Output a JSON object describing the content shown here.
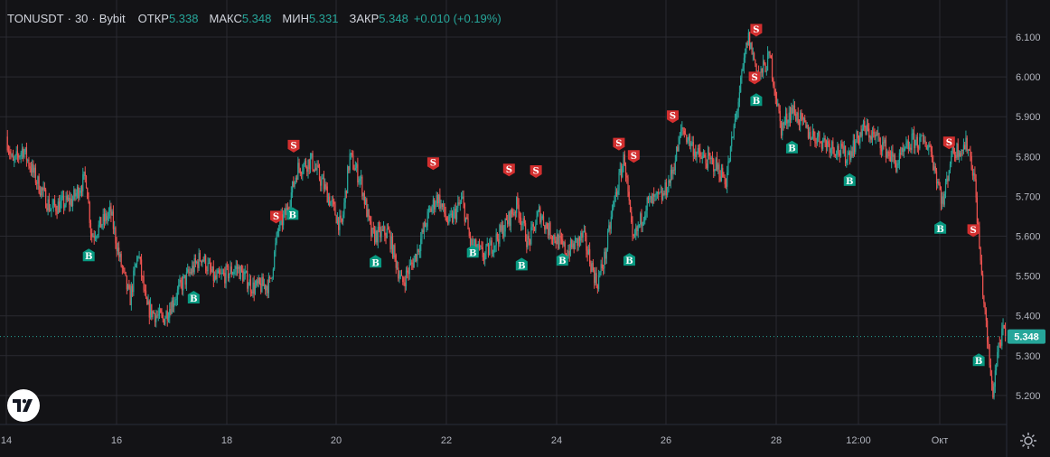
{
  "header": {
    "symbol": "TONUSDT",
    "interval": "30",
    "exchange": "Bybit",
    "open_label": "ОТКР",
    "open_value": "5.338",
    "high_label": "МАКС",
    "high_value": "5.348",
    "low_label": "МИН",
    "low_value": "5.331",
    "close_label": "ЗАКР",
    "close_value": "5.348",
    "change": "+0.010 (+0.19%)"
  },
  "colors": {
    "up": "#26a69a",
    "down": "#ef5350",
    "background": "#131316",
    "grid": "#2a2a30",
    "buy_marker": "#089981",
    "sell_marker": "#d32f2f",
    "price_tag": "#26a69a"
  },
  "price_tag": "5.348",
  "icons": {
    "logo": "tradingview-logo-icon",
    "settings": "gear-icon"
  },
  "chart_data": {
    "type": "candlestick",
    "x_ticks": [
      "14",
      "16",
      "18",
      "20",
      "22",
      "24",
      "26",
      "28",
      "12:00",
      "Окт"
    ],
    "y_ticks": [
      "6.100",
      "6.000",
      "5.900",
      "5.800",
      "5.700",
      "5.600",
      "5.500",
      "5.400",
      "5.300",
      "5.200"
    ],
    "ylim": [
      5.15,
      6.14
    ],
    "current_price": 5.348,
    "price_path": [
      {
        "t": 0,
        "p": 5.85
      },
      {
        "t": 0.12,
        "p": 5.78
      },
      {
        "t": 0.3,
        "p": 5.82
      },
      {
        "t": 0.55,
        "p": 5.74
      },
      {
        "t": 0.8,
        "p": 5.67
      },
      {
        "t": 1.2,
        "p": 5.69
      },
      {
        "t": 1.45,
        "p": 5.75
      },
      {
        "t": 1.55,
        "p": 5.6
      },
      {
        "t": 1.9,
        "p": 5.66
      },
      {
        "t": 2.05,
        "p": 5.55
      },
      {
        "t": 2.25,
        "p": 5.44
      },
      {
        "t": 2.4,
        "p": 5.56
      },
      {
        "t": 2.55,
        "p": 5.42
      },
      {
        "t": 2.85,
        "p": 5.39
      },
      {
        "t": 3.2,
        "p": 5.48
      },
      {
        "t": 3.55,
        "p": 5.55
      },
      {
        "t": 3.8,
        "p": 5.49
      },
      {
        "t": 4.2,
        "p": 5.52
      },
      {
        "t": 4.5,
        "p": 5.47
      },
      {
        "t": 4.8,
        "p": 5.48
      },
      {
        "t": 4.95,
        "p": 5.62
      },
      {
        "t": 5.1,
        "p": 5.66
      },
      {
        "t": 5.3,
        "p": 5.77
      },
      {
        "t": 5.55,
        "p": 5.79
      },
      {
        "t": 5.8,
        "p": 5.72
      },
      {
        "t": 6.1,
        "p": 5.62
      },
      {
        "t": 6.25,
        "p": 5.8
      },
      {
        "t": 6.45,
        "p": 5.74
      },
      {
        "t": 6.65,
        "p": 5.6
      },
      {
        "t": 6.95,
        "p": 5.61
      },
      {
        "t": 7.2,
        "p": 5.48
      },
      {
        "t": 7.45,
        "p": 5.55
      },
      {
        "t": 7.7,
        "p": 5.66
      },
      {
        "t": 7.85,
        "p": 5.7
      },
      {
        "t": 8.05,
        "p": 5.63
      },
      {
        "t": 8.3,
        "p": 5.69
      },
      {
        "t": 8.45,
        "p": 5.58
      },
      {
        "t": 8.7,
        "p": 5.55
      },
      {
        "t": 9.05,
        "p": 5.62
      },
      {
        "t": 9.3,
        "p": 5.68
      },
      {
        "t": 9.5,
        "p": 5.58
      },
      {
        "t": 9.7,
        "p": 5.66
      },
      {
        "t": 9.85,
        "p": 5.62
      },
      {
        "t": 10.2,
        "p": 5.56
      },
      {
        "t": 10.5,
        "p": 5.6
      },
      {
        "t": 10.75,
        "p": 5.48
      },
      {
        "t": 10.9,
        "p": 5.55
      },
      {
        "t": 11.05,
        "p": 5.68
      },
      {
        "t": 11.25,
        "p": 5.8
      },
      {
        "t": 11.4,
        "p": 5.58
      },
      {
        "t": 11.65,
        "p": 5.68
      },
      {
        "t": 11.95,
        "p": 5.7
      },
      {
        "t": 12.1,
        "p": 5.75
      },
      {
        "t": 12.3,
        "p": 5.87
      },
      {
        "t": 12.6,
        "p": 5.8
      },
      {
        "t": 12.9,
        "p": 5.78
      },
      {
        "t": 13.1,
        "p": 5.74
      },
      {
        "t": 13.3,
        "p": 5.92
      },
      {
        "t": 13.5,
        "p": 6.1
      },
      {
        "t": 13.7,
        "p": 6.0
      },
      {
        "t": 13.9,
        "p": 6.05
      },
      {
        "t": 14.1,
        "p": 5.87
      },
      {
        "t": 14.3,
        "p": 5.92
      },
      {
        "t": 14.6,
        "p": 5.86
      },
      {
        "t": 15.0,
        "p": 5.83
      },
      {
        "t": 15.3,
        "p": 5.8
      },
      {
        "t": 15.6,
        "p": 5.87
      },
      {
        "t": 15.9,
        "p": 5.84
      },
      {
        "t": 16.2,
        "p": 5.78
      },
      {
        "t": 16.5,
        "p": 5.84
      },
      {
        "t": 16.8,
        "p": 5.83
      },
      {
        "t": 17.05,
        "p": 5.68
      },
      {
        "t": 17.2,
        "p": 5.81
      },
      {
        "t": 17.5,
        "p": 5.83
      },
      {
        "t": 17.62,
        "p": 5.75
      },
      {
        "t": 17.75,
        "p": 5.5
      },
      {
        "t": 17.85,
        "p": 5.35
      },
      {
        "t": 17.95,
        "p": 5.2
      },
      {
        "t": 18.05,
        "p": 5.32
      },
      {
        "t": 18.15,
        "p": 5.36
      },
      {
        "t": 18.2,
        "p": 5.345
      }
    ],
    "signals": [
      {
        "type": "B",
        "t": 1.5,
        "price": 5.553
      },
      {
        "type": "B",
        "t": 3.41,
        "price": 5.447
      },
      {
        "type": "S",
        "t": 4.91,
        "price": 5.648
      },
      {
        "type": "S",
        "t": 5.23,
        "price": 5.826
      },
      {
        "type": "B",
        "t": 5.21,
        "price": 5.657
      },
      {
        "type": "B",
        "t": 6.72,
        "price": 5.537
      },
      {
        "type": "S",
        "t": 7.77,
        "price": 5.782
      },
      {
        "type": "B",
        "t": 8.49,
        "price": 5.562
      },
      {
        "type": "S",
        "t": 9.15,
        "price": 5.766
      },
      {
        "type": "B",
        "t": 9.38,
        "price": 5.53
      },
      {
        "type": "S",
        "t": 9.64,
        "price": 5.762
      },
      {
        "type": "B",
        "t": 10.12,
        "price": 5.542
      },
      {
        "type": "S",
        "t": 11.15,
        "price": 5.831
      },
      {
        "type": "S",
        "t": 11.42,
        "price": 5.8
      },
      {
        "type": "B",
        "t": 11.34,
        "price": 5.542
      },
      {
        "type": "S",
        "t": 12.13,
        "price": 5.9
      },
      {
        "type": "S",
        "t": 13.62,
        "price": 5.997
      },
      {
        "type": "S",
        "t": 13.65,
        "price": 6.117
      },
      {
        "type": "B",
        "t": 13.65,
        "price": 5.943
      },
      {
        "type": "B",
        "t": 14.3,
        "price": 5.824
      },
      {
        "type": "B",
        "t": 15.35,
        "price": 5.742
      },
      {
        "type": "S",
        "t": 17.16,
        "price": 5.834
      },
      {
        "type": "B",
        "t": 17.0,
        "price": 5.622
      },
      {
        "type": "S",
        "t": 17.6,
        "price": 5.614
      },
      {
        "type": "B",
        "t": 17.7,
        "price": 5.29
      }
    ]
  }
}
